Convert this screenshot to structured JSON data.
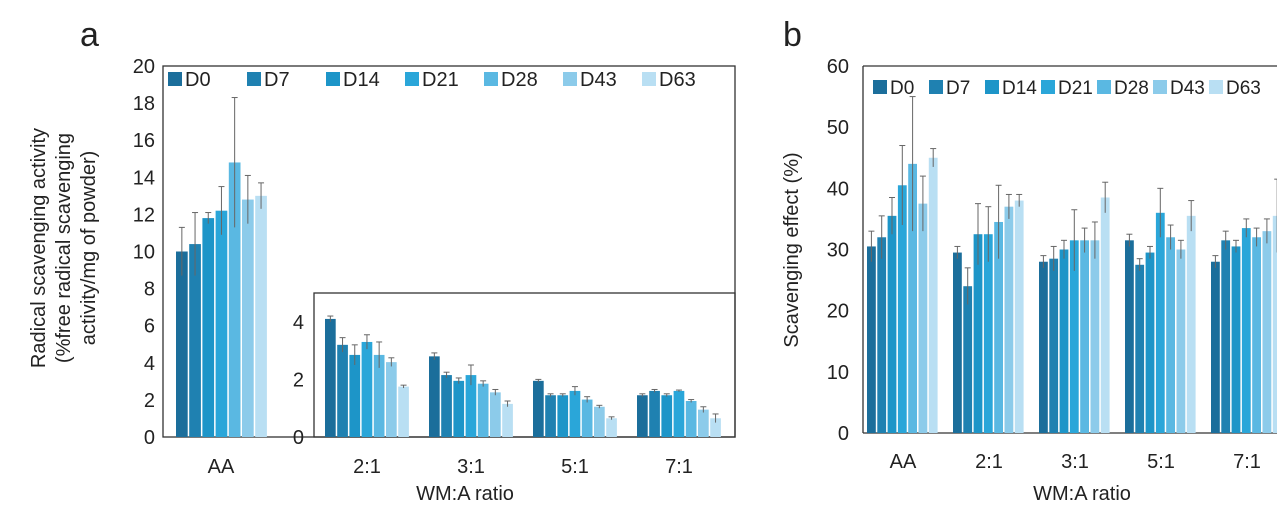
{
  "panel_labels": [
    "a",
    "b"
  ],
  "series_names": [
    "D0",
    "D7",
    "D14",
    "D21",
    "D28",
    "D43",
    "D63"
  ],
  "colors": [
    "#1b6e9b",
    "#1f81b1",
    "#1d95c8",
    "#2aa6d9",
    "#5ab8e2",
    "#8ccbea",
    "#b9dff3"
  ],
  "chart_data": [
    {
      "panel": "a",
      "type": "bar",
      "subtype": "grouped bar with error bars, broken into main and inset",
      "title": "",
      "xlabel": "WM:A ratio",
      "ylabel_lines": [
        "Radical scavenging activity",
        "(%free radical scavenging",
        "activity/mg of powder)"
      ],
      "legend_position": "top",
      "main": {
        "ylim": [
          0,
          20
        ],
        "yticks": [
          "0",
          "2",
          "4",
          "6",
          "8",
          "10",
          "12",
          "14",
          "16",
          "18",
          "20"
        ],
        "categories": [
          "AA"
        ],
        "series": [
          {
            "name": "D0",
            "values": [
              10.0
            ],
            "errors": [
              1.3
            ]
          },
          {
            "name": "D7",
            "values": [
              10.4
            ],
            "errors": [
              1.7
            ]
          },
          {
            "name": "D14",
            "values": [
              11.8
            ],
            "errors": [
              0.3
            ]
          },
          {
            "name": "D21",
            "values": [
              12.2
            ],
            "errors": [
              1.3
            ]
          },
          {
            "name": "D28",
            "values": [
              14.8
            ],
            "errors": [
              3.5
            ]
          },
          {
            "name": "D43",
            "values": [
              12.8
            ],
            "errors": [
              1.3
            ]
          },
          {
            "name": "D63",
            "values": [
              13.0
            ],
            "errors": [
              0.7
            ]
          }
        ]
      },
      "inset": {
        "ylim": [
          0,
          5
        ],
        "yticks": [
          "0",
          "2",
          "4"
        ],
        "categories": [
          "2:1",
          "3:1",
          "5:1",
          "7:1"
        ],
        "series": [
          {
            "name": "D0",
            "values": [
              4.1,
              2.8,
              1.95,
              1.45
            ],
            "errors": [
              0.1,
              0.12,
              0.05,
              0.05
            ]
          },
          {
            "name": "D7",
            "values": [
              3.2,
              2.15,
              1.45,
              1.6
            ],
            "errors": [
              0.25,
              0.1,
              0.05,
              0.05
            ]
          },
          {
            "name": "D14",
            "values": [
              2.85,
              1.95,
              1.45,
              1.45
            ],
            "errors": [
              0.35,
              0.1,
              0.05,
              0.05
            ]
          },
          {
            "name": "D21",
            "values": [
              3.3,
              2.15,
              1.6,
              1.6
            ],
            "errors": [
              0.25,
              0.35,
              0.15,
              0.03
            ]
          },
          {
            "name": "D28",
            "values": [
              2.85,
              1.85,
              1.3,
              1.25
            ],
            "errors": [
              0.45,
              0.1,
              0.1,
              0.05
            ]
          },
          {
            "name": "D43",
            "values": [
              2.6,
              1.55,
              1.05,
              0.95
            ],
            "errors": [
              0.15,
              0.1,
              0.05,
              0.1
            ]
          },
          {
            "name": "D63",
            "values": [
              1.75,
              1.15,
              0.65,
              0.65
            ],
            "errors": [
              0.05,
              0.1,
              0.05,
              0.15
            ]
          }
        ]
      }
    },
    {
      "panel": "b",
      "type": "bar",
      "subtype": "grouped bar with error bars",
      "title": "",
      "xlabel": "WM:A ratio",
      "ylabel": "Scavenging effect (%)",
      "ylim": [
        0,
        60
      ],
      "yticks": [
        "0",
        "10",
        "20",
        "30",
        "40",
        "50",
        "60"
      ],
      "legend_position": "top",
      "categories": [
        "AA",
        "2:1",
        "3:1",
        "5:1",
        "7:1"
      ],
      "series": [
        {
          "name": "D0",
          "values": [
            30.5,
            29.5,
            28.0,
            31.5,
            28.0
          ],
          "errors": [
            2.5,
            1.0,
            1.0,
            1.0,
            1.0
          ]
        },
        {
          "name": "D7",
          "values": [
            32.0,
            24.0,
            28.5,
            27.5,
            31.5
          ],
          "errors": [
            3.5,
            3.0,
            2.0,
            1.0,
            1.5
          ]
        },
        {
          "name": "D14",
          "values": [
            35.5,
            32.5,
            30.0,
            29.5,
            30.5
          ],
          "errors": [
            3.0,
            5.0,
            1.5,
            1.0,
            1.0
          ]
        },
        {
          "name": "D21",
          "values": [
            40.5,
            32.5,
            31.5,
            36.0,
            33.5
          ],
          "errors": [
            6.5,
            4.5,
            5.0,
            4.0,
            1.5
          ]
        },
        {
          "name": "D28",
          "values": [
            44.0,
            34.5,
            31.5,
            32.0,
            32.0
          ],
          "errors": [
            11.0,
            6.0,
            2.0,
            2.0,
            1.5
          ]
        },
        {
          "name": "D43",
          "values": [
            37.5,
            37.0,
            31.5,
            30.0,
            33.0
          ],
          "errors": [
            4.5,
            2.0,
            3.0,
            1.5,
            2.0
          ]
        },
        {
          "name": "D63",
          "values": [
            45.0,
            38.0,
            38.5,
            35.5,
            35.5
          ],
          "errors": [
            1.5,
            1.0,
            2.5,
            2.5,
            6.0
          ]
        }
      ]
    }
  ]
}
